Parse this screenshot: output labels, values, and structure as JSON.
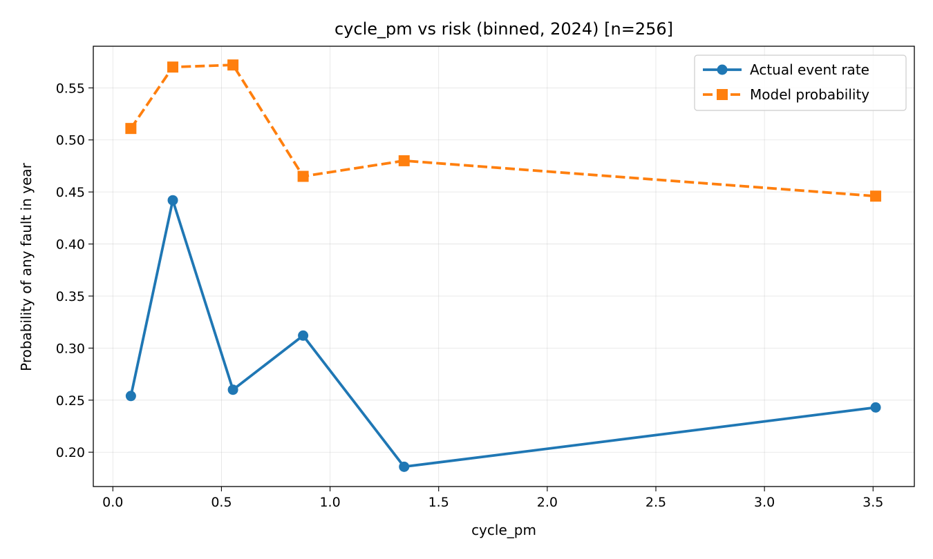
{
  "chart_data": {
    "type": "line",
    "title": "cycle_pm vs risk (binned, 2024)  [n=256]",
    "xlabel": "cycle_pm",
    "ylabel": "Probability of any fault in year",
    "xlim": [
      -0.09,
      3.69
    ],
    "ylim": [
      0.167,
      0.59
    ],
    "xticks": [
      0.0,
      0.5,
      1.0,
      1.5,
      2.0,
      2.5,
      3.0,
      3.5
    ],
    "xtick_labels": [
      "0.0",
      "0.5",
      "1.0",
      "1.5",
      "2.0",
      "2.5",
      "3.0",
      "3.5"
    ],
    "yticks": [
      0.2,
      0.25,
      0.3,
      0.35,
      0.4,
      0.45,
      0.5,
      0.55
    ],
    "ytick_labels": [
      "0.20",
      "0.25",
      "0.30",
      "0.35",
      "0.40",
      "0.45",
      "0.50",
      "0.55"
    ],
    "grid": true,
    "legend_position": "top-right",
    "series": [
      {
        "name": "Actual event rate",
        "color": "#1f77b4",
        "linestyle": "solid",
        "marker": "circle",
        "x": [
          0.083,
          0.276,
          0.553,
          0.876,
          1.341,
          3.512
        ],
        "y": [
          0.254,
          0.442,
          0.26,
          0.312,
          0.186,
          0.243
        ]
      },
      {
        "name": "Model probability",
        "color": "#ff7f0e",
        "linestyle": "dashed",
        "marker": "square",
        "x": [
          0.083,
          0.276,
          0.553,
          0.876,
          1.341,
          3.512
        ],
        "y": [
          0.511,
          0.57,
          0.572,
          0.465,
          0.48,
          0.446
        ]
      }
    ]
  }
}
